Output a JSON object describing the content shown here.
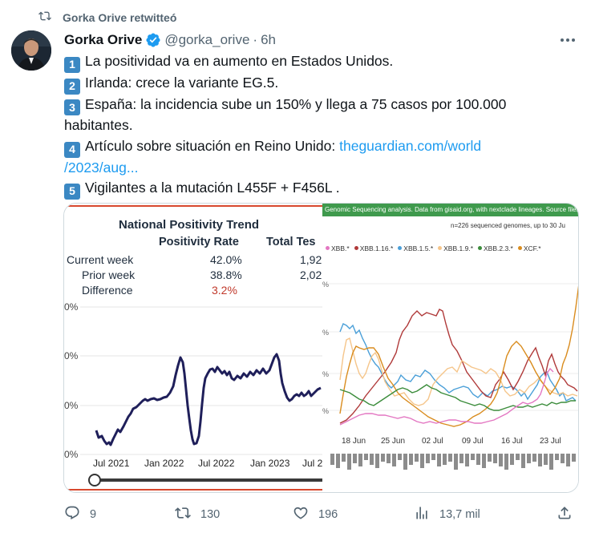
{
  "retweet": {
    "icon": "retweet-icon",
    "label": "Gorka Orive retwitteó"
  },
  "author": {
    "name": "Gorka Orive",
    "handle": "@gorka_orive",
    "separator": "·",
    "time": "6h",
    "verified": true
  },
  "tweet": {
    "items": [
      {
        "num": "1",
        "text": "La positividad va en aumento en Estados Unidos."
      },
      {
        "num": "2",
        "text": "Irlanda: crece la variante EG.5."
      },
      {
        "num": "3",
        "text": "España: la incidencia sube un 150% y llega a 75 casos por 100.000",
        "text_cont": "habitantes."
      },
      {
        "num": "4",
        "text": "Artículo sobre situación en Reino Unido: ",
        "link1": "theguardian.com/world",
        "link2": "/2023/aug..."
      },
      {
        "num": "5",
        "text": "Vigilantes a la mutación L455F + F456L ."
      }
    ]
  },
  "left_chart": {
    "title": "National Positivity Trend",
    "col_positivity": "Positivity Rate",
    "col_tests": "Total Tes",
    "rows": [
      {
        "label": "Current week",
        "rate": "42.0%",
        "tests": "1,92"
      },
      {
        "label": "Prior week",
        "rate": "38.8%",
        "tests": "2,02"
      },
      {
        "label": "Difference",
        "rate": "3.2%",
        "tests": ""
      }
    ],
    "y_ticks": [
      "0%",
      "0%",
      "0%",
      "0%"
    ],
    "x_ticks": [
      "Jul 2021",
      "Jan 2022",
      "Jul 2022",
      "Jan 2023",
      "Jul 2"
    ],
    "accent": "#d8482e"
  },
  "right_chart": {
    "header": "Genomic Sequencing analysis. Data from gisaid.org, with nextclade lineages. Source files and",
    "subtitle": "n=226 sequenced genomes, up to 30 Ju",
    "legend": [
      {
        "name": "XBB.*",
        "color": "#e377c2"
      },
      {
        "name": "XBB.1.16.*",
        "color": "#b03a3a"
      },
      {
        "name": "XBB.1.5.*",
        "color": "#4a9fd8"
      },
      {
        "name": "XBB.1.9.*",
        "color": "#f5c58a"
      },
      {
        "name": "XBB.2.3.*",
        "color": "#3b8c3b"
      },
      {
        "name": "XCF.*",
        "color": "#d98c1e"
      }
    ],
    "x_ticks": [
      "18 Jun",
      "25 Jun",
      "02 Jul",
      "09 Jul",
      "16 Jul",
      "23 Jul"
    ],
    "y_ticks": [
      "%",
      "%",
      "%",
      "%"
    ],
    "header_color": "#3f9a4d"
  },
  "actions": {
    "replies": "9",
    "retweets": "130",
    "likes": "196",
    "views": "13,7 mil"
  }
}
